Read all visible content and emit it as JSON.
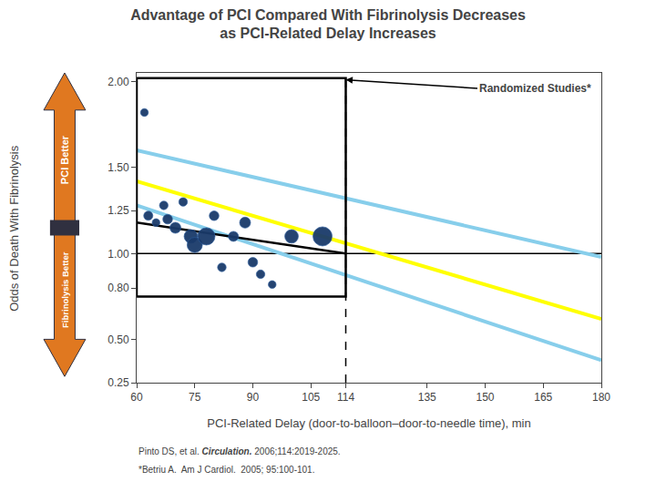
{
  "chart_data": {
    "type": "scatter",
    "title": "Advantage of PCI Compared With Fibrinolysis Decreases",
    "subtitle": "as PCI-Related Delay Increases",
    "xlabel": "PCI-Related Delay (door-to-balloon–door-to-needle time), min",
    "ylabel": "Odds of Death With Fibrinolysis",
    "xlim": [
      60,
      180
    ],
    "ylim": [
      0.25,
      2.05
    ],
    "xticks": [
      60,
      75,
      90,
      105,
      114,
      135,
      150,
      165,
      180
    ],
    "yticks": [
      0.25,
      {
        "value": 0.5,
        "label": "0.50"
      },
      {
        "value": 0.8,
        "label": "0.80"
      },
      {
        "value": 1.0,
        "label": "1.00"
      },
      1.25,
      {
        "value": 1.5,
        "label": "1.50"
      },
      {
        "value": 2.0,
        "label": "2.00"
      }
    ],
    "grid": false,
    "legend": false,
    "series": [
      {
        "type": "line",
        "color": "#87CEEB",
        "x": [
          60,
          180
        ],
        "values": [
          1.6,
          0.98
        ]
      },
      {
        "type": "line",
        "color": "#87CEEB",
        "x": [
          60,
          180
        ],
        "values": [
          1.28,
          0.38
        ]
      },
      {
        "type": "line",
        "color": "#FFFF00",
        "x": [
          60,
          180
        ],
        "values": [
          1.42,
          0.62
        ]
      },
      {
        "type": "line",
        "color": "black",
        "x": [
          60,
          114
        ],
        "values": [
          1.18,
          1.0
        ]
      },
      {
        "type": "scatter",
        "color": "#1a3a6a",
        "edge_color": "#2a5a9a",
        "x": [
          62,
          63,
          65,
          67,
          68,
          70,
          72,
          74,
          75,
          78,
          80,
          82,
          85,
          88,
          90,
          92,
          95,
          100,
          108
        ],
        "values": [
          1.82,
          1.22,
          1.18,
          1.28,
          1.2,
          1.15,
          1.3,
          1.1,
          1.05,
          1.1,
          1.22,
          0.92,
          1.1,
          1.18,
          0.95,
          0.88,
          0.82,
          1.1,
          1.1
        ],
        "sizes": [
          18,
          25,
          18,
          22,
          28,
          36,
          22,
          55,
          70,
          90,
          28,
          22,
          30,
          36,
          28,
          22,
          18,
          55,
          110
        ]
      }
    ],
    "reference_lines": [
      {
        "axis": "y",
        "value": 1.0,
        "color": "black",
        "line_style": "solid"
      },
      {
        "axis": "x",
        "value": 114,
        "color": "black",
        "line_style": "dashed"
      }
    ],
    "box": {
      "x": [
        60,
        114
      ],
      "y": [
        0.75,
        2.02
      ],
      "color": "black"
    },
    "annotations": [
      {
        "text": "Randomized Studies*",
        "x": 148,
        "y": 1.96,
        "arrow_to": [
          114,
          2.01
        ]
      }
    ],
    "arrow_labels": {
      "up": "PCI Better",
      "down": "Fibrinolysis Better",
      "color": "#E07820",
      "edge_color": "#303040"
    },
    "notes": [
      [
        "Pinto DS, et al. ",
        "Circulation.",
        " 2006;114:2019-2025."
      ],
      [
        "*Betriu A.  Am J Cardiol.  2005; 95:100-101."
      ]
    ]
  }
}
